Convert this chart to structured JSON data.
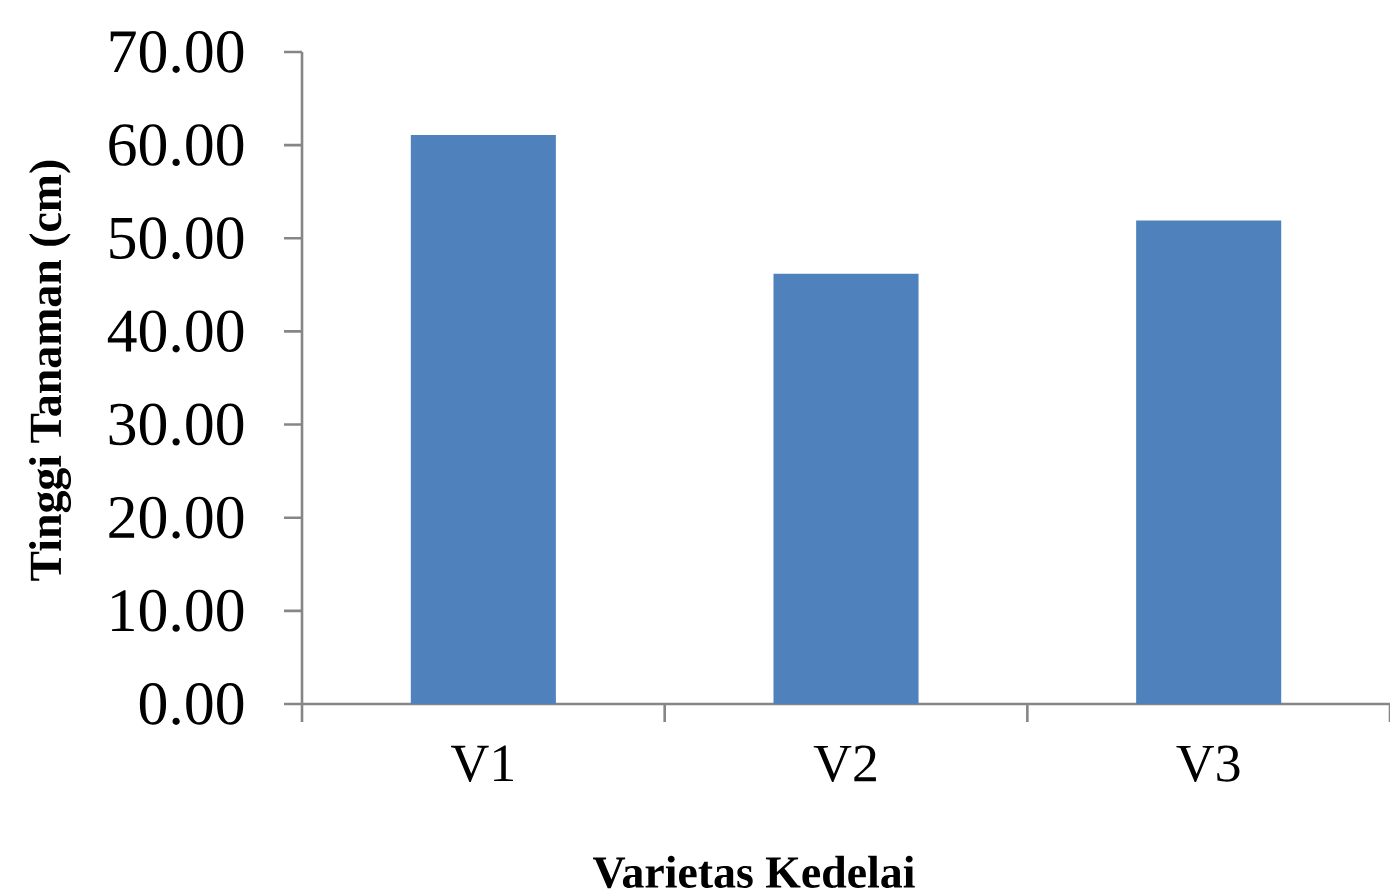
{
  "chart_data": {
    "type": "bar",
    "xlabel": "Varietas Kedelai",
    "ylabel": "Tinggi Tanaman (cm)",
    "categories": [
      "V1",
      "V2",
      "V3"
    ],
    "values": [
      61.1,
      46.2,
      51.9
    ],
    "color": "#4f81bd",
    "ylim": [
      0,
      70
    ],
    "yticks": [
      {
        "value": 0,
        "label": "0.00"
      },
      {
        "value": 10,
        "label": "10.00"
      },
      {
        "value": 20,
        "label": "20.00"
      },
      {
        "value": 30,
        "label": "30.00"
      },
      {
        "value": 40,
        "label": "40.00"
      },
      {
        "value": 50,
        "label": "50.00"
      },
      {
        "value": 60,
        "label": "60.00"
      },
      {
        "value": 70,
        "label": "70.00"
      }
    ]
  }
}
